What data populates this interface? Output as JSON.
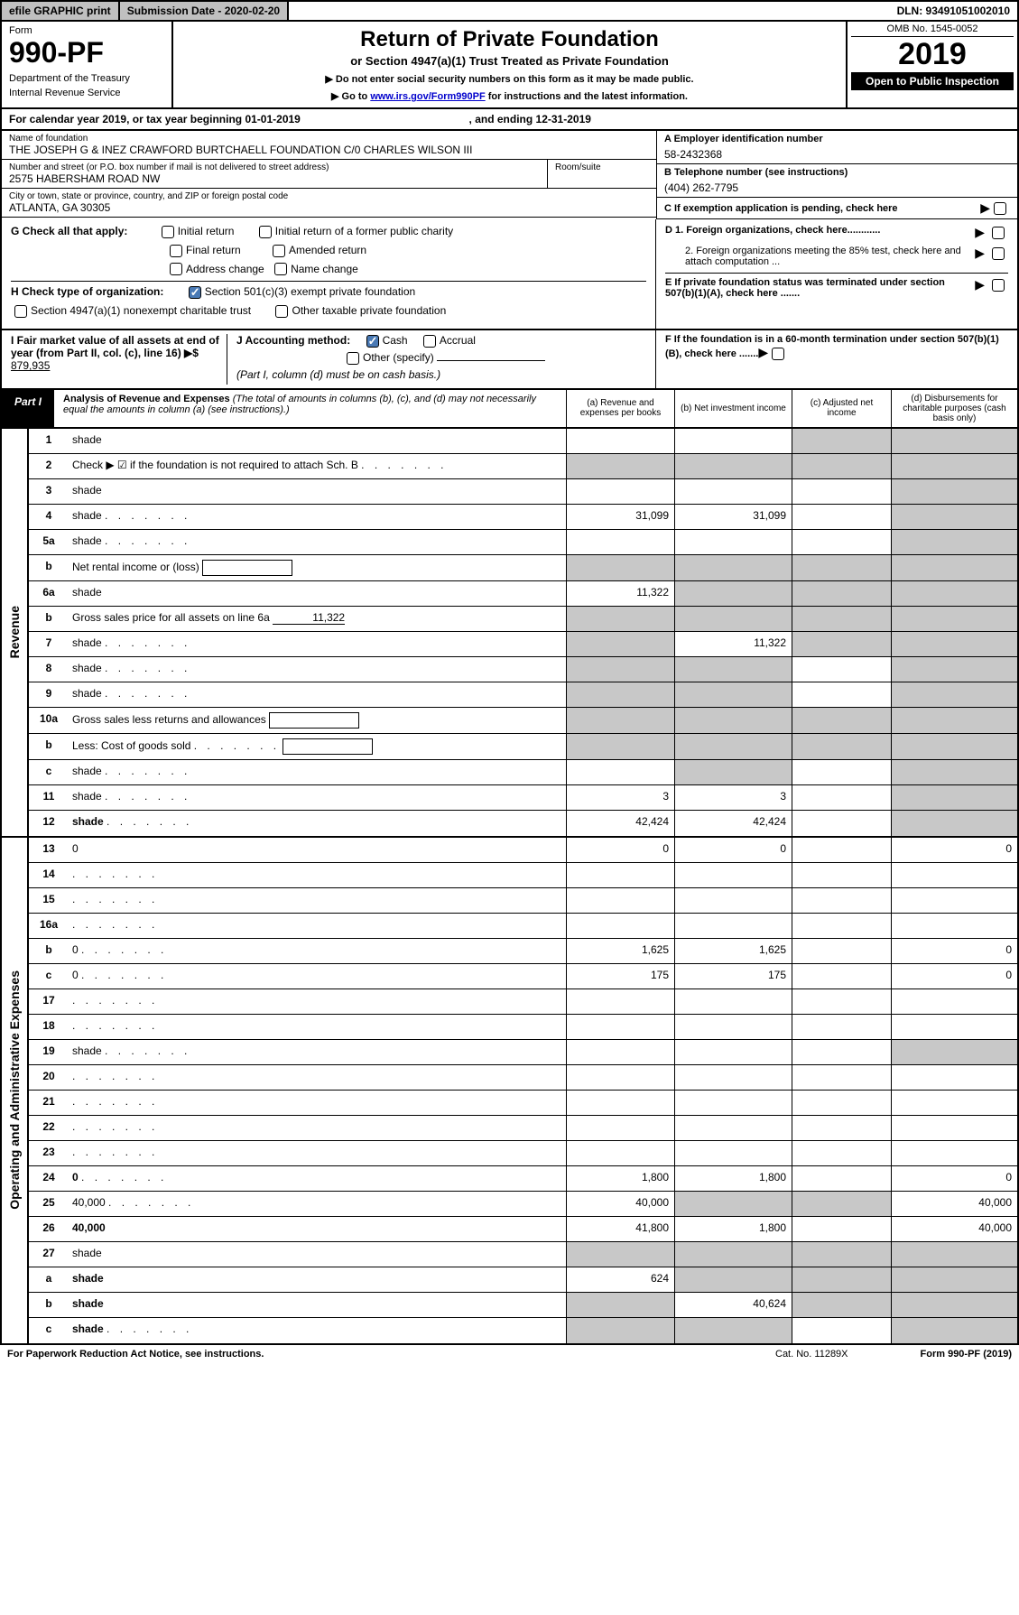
{
  "colors": {
    "header_gray": "#c0c0c0",
    "black": "#000000",
    "white": "#ffffff",
    "link_blue": "#0000cc",
    "checkbox_blue": "#4a7ab5",
    "shaded_cell": "#c8c8c8"
  },
  "top": {
    "efile": "efile GRAPHIC print",
    "submission_label": "Submission Date - 2020-02-20",
    "dln": "DLN: 93491051002010"
  },
  "header": {
    "form_label": "Form",
    "form_number": "990-PF",
    "dept1": "Department of the Treasury",
    "dept2": "Internal Revenue Service",
    "title": "Return of Private Foundation",
    "subtitle": "or Section 4947(a)(1) Trust Treated as Private Foundation",
    "note1": "▶ Do not enter social security numbers on this form as it may be made public.",
    "note2_pre": "▶ Go to ",
    "note2_link": "www.irs.gov/Form990PF",
    "note2_post": " for instructions and the latest information.",
    "omb": "OMB No. 1545-0052",
    "year": "2019",
    "open": "Open to Public Inspection"
  },
  "calyear": {
    "text_pre": "For calendar year 2019, or tax year beginning ",
    "begin": "01-01-2019",
    "text_mid": " , and ending ",
    "end": "12-31-2019"
  },
  "info": {
    "name_label": "Name of foundation",
    "name": "THE JOSEPH G & INEZ CRAWFORD BURTCHAELL FOUNDATION C/0 CHARLES WILSON III",
    "addr_label": "Number and street (or P.O. box number if mail is not delivered to street address)",
    "addr": "2575 HABERSHAM ROAD NW",
    "room_label": "Room/suite",
    "room": "",
    "city_label": "City or town, state or province, country, and ZIP or foreign postal code",
    "city": "ATLANTA, GA  30305",
    "ein_label": "A Employer identification number",
    "ein": "58-2432368",
    "phone_label": "B Telephone number (see instructions)",
    "phone": "(404) 262-7795",
    "c_label": "C If exemption application is pending, check here"
  },
  "g": {
    "label": "G Check all that apply:",
    "opts": [
      "Initial return",
      "Initial return of a former public charity",
      "Final return",
      "Amended return",
      "Address change",
      "Name change"
    ]
  },
  "h": {
    "label": "H Check type of organization:",
    "opt1": "Section 501(c)(3) exempt private foundation",
    "opt2": "Section 4947(a)(1) nonexempt charitable trust",
    "opt3": "Other taxable private foundation"
  },
  "d": {
    "d1": "D 1. Foreign organizations, check here............",
    "d2": "2. Foreign organizations meeting the 85% test, check here and attach computation ...",
    "e": "E  If private foundation status was terminated under section 507(b)(1)(A), check here .......",
    "f": "F  If the foundation is in a 60-month termination under section 507(b)(1)(B), check here ......."
  },
  "i": {
    "label": "I Fair market value of all assets at end of year (from Part II, col. (c), line 16) ▶$",
    "value": "879,935"
  },
  "j": {
    "label": "J Accounting method:",
    "cash": "Cash",
    "accrual": "Accrual",
    "other": "Other (specify)",
    "note": "(Part I, column (d) must be on cash basis.)"
  },
  "part1": {
    "label": "Part I",
    "title": "Analysis of Revenue and Expenses",
    "note": "(The total of amounts in columns (b), (c), and (d) may not necessarily equal the amounts in column (a) (see instructions).)",
    "col_a": "(a)   Revenue and expenses per books",
    "col_b": "(b)  Net investment income",
    "col_c": "(c)  Adjusted net income",
    "col_d": "(d)  Disbursements for charitable purposes (cash basis only)"
  },
  "side_rev": "Revenue",
  "side_exp": "Operating and Administrative Expenses",
  "rows_rev": [
    {
      "n": "1",
      "d": "shade",
      "a": "",
      "b": "",
      "c": "shade"
    },
    {
      "n": "2",
      "d": "Check ▶ ☑ if the foundation is not required to attach Sch. B",
      "dots": true,
      "nocell": true
    },
    {
      "n": "3",
      "d": "shade",
      "a": "",
      "b": "",
      "c": ""
    },
    {
      "n": "4",
      "d": "shade",
      "dots": true,
      "a": "31,099",
      "b": "31,099",
      "c": ""
    },
    {
      "n": "5a",
      "d": "shade",
      "dots": true,
      "a": "",
      "b": "",
      "c": ""
    },
    {
      "n": "b",
      "d": "Net rental income or (loss)",
      "box": true,
      "nocell": true
    },
    {
      "n": "6a",
      "d": "shade",
      "a": "11,322",
      "b": "shade",
      "c": "shade"
    },
    {
      "n": "b",
      "d": "Gross sales price for all assets on line 6a",
      "under": "11,322",
      "nocell": true
    },
    {
      "n": "7",
      "d": "shade",
      "dots": true,
      "a": "shade",
      "b": "11,322",
      "c": "shade"
    },
    {
      "n": "8",
      "d": "shade",
      "dots": true,
      "a": "shade",
      "b": "shade",
      "c": ""
    },
    {
      "n": "9",
      "d": "shade",
      "dots": true,
      "a": "shade",
      "b": "shade",
      "c": ""
    },
    {
      "n": "10a",
      "d": "Gross sales less returns and allowances",
      "box": true,
      "nocell": true
    },
    {
      "n": "b",
      "d": "Less: Cost of goods sold",
      "dots": true,
      "box": true,
      "nocell": true
    },
    {
      "n": "c",
      "d": "shade",
      "dots": true,
      "a": "",
      "b": "shade",
      "c": ""
    },
    {
      "n": "11",
      "d": "shade",
      "dots": true,
      "a": "3",
      "b": "3",
      "c": ""
    },
    {
      "n": "12",
      "d": "shade",
      "bold": true,
      "dots": true,
      "a": "42,424",
      "b": "42,424",
      "c": ""
    }
  ],
  "rows_exp": [
    {
      "n": "13",
      "d": "0",
      "a": "0",
      "b": "0",
      "c": ""
    },
    {
      "n": "14",
      "d": "",
      "dots": true,
      "a": "",
      "b": "",
      "c": ""
    },
    {
      "n": "15",
      "d": "",
      "dots": true,
      "a": "",
      "b": "",
      "c": ""
    },
    {
      "n": "16a",
      "d": "",
      "dots": true,
      "a": "",
      "b": "",
      "c": ""
    },
    {
      "n": "b",
      "d": "0",
      "dots": true,
      "a": "1,625",
      "b": "1,625",
      "c": ""
    },
    {
      "n": "c",
      "d": "0",
      "dots": true,
      "a": "175",
      "b": "175",
      "c": ""
    },
    {
      "n": "17",
      "d": "",
      "dots": true,
      "a": "",
      "b": "",
      "c": ""
    },
    {
      "n": "18",
      "d": "",
      "dots": true,
      "a": "",
      "b": "",
      "c": ""
    },
    {
      "n": "19",
      "d": "shade",
      "dots": true,
      "a": "",
      "b": "",
      "c": ""
    },
    {
      "n": "20",
      "d": "",
      "dots": true,
      "a": "",
      "b": "",
      "c": ""
    },
    {
      "n": "21",
      "d": "",
      "dots": true,
      "a": "",
      "b": "",
      "c": ""
    },
    {
      "n": "22",
      "d": "",
      "dots": true,
      "a": "",
      "b": "",
      "c": ""
    },
    {
      "n": "23",
      "d": "",
      "dots": true,
      "a": "",
      "b": "",
      "c": ""
    },
    {
      "n": "24",
      "d": "0",
      "bold": true,
      "dots": true,
      "a": "1,800",
      "b": "1,800",
      "c": ""
    },
    {
      "n": "25",
      "d": "40,000",
      "dots": true,
      "a": "40,000",
      "b": "shade",
      "c": "shade"
    },
    {
      "n": "26",
      "d": "40,000",
      "bold": true,
      "a": "41,800",
      "b": "1,800",
      "c": ""
    },
    {
      "n": "27",
      "d": "shade",
      "a": "shade",
      "b": "shade",
      "c": "shade"
    },
    {
      "n": "a",
      "d": "shade",
      "bold": true,
      "a": "624",
      "b": "shade",
      "c": "shade"
    },
    {
      "n": "b",
      "d": "shade",
      "bold": true,
      "a": "shade",
      "b": "40,624",
      "c": "shade"
    },
    {
      "n": "c",
      "d": "shade",
      "bold": true,
      "dots": true,
      "a": "shade",
      "b": "shade",
      "c": ""
    }
  ],
  "footer": {
    "left": "For Paperwork Reduction Act Notice, see instructions.",
    "mid": "Cat. No. 11289X",
    "right": "Form 990-PF (2019)"
  }
}
